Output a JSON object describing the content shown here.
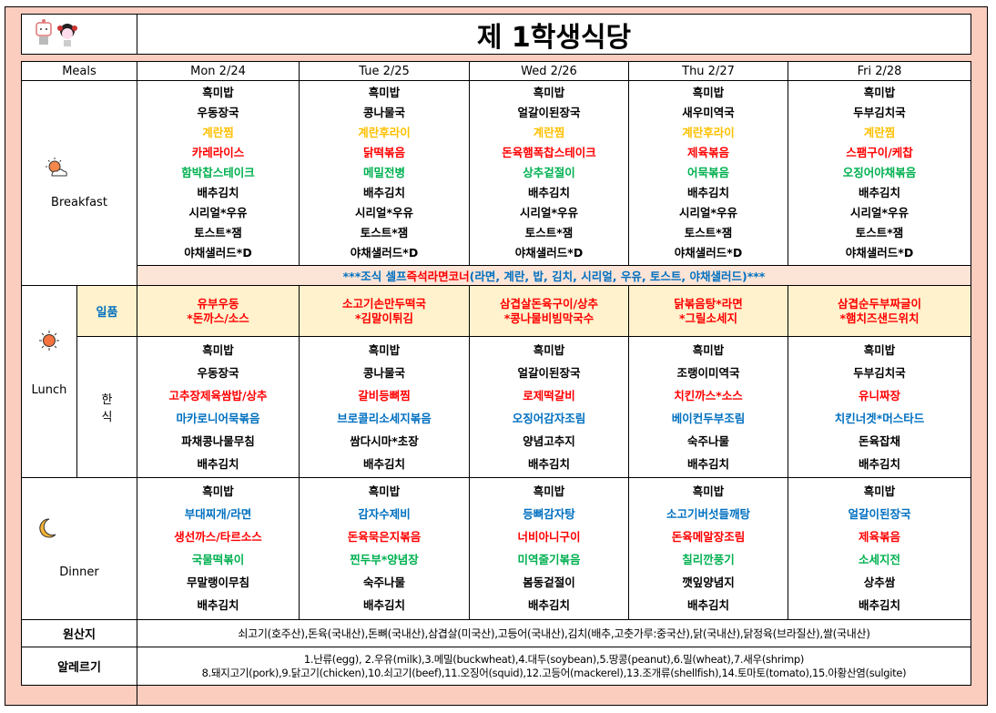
{
  "title": "제 1학생식당",
  "header": {
    "meals": "Meals",
    "days": [
      "Mon 2/24",
      "Tue 2/25",
      "Wed 2/26",
      "Thu 2/27",
      "Fri 2/28"
    ]
  },
  "labels": {
    "breakfast": "Breakfast",
    "lunch": "Lunch",
    "ilpum": "일품",
    "hansik_1": "한",
    "hansik_2": "식",
    "dinner": "Dinner",
    "origin": "원산지",
    "allergy": "알레르기"
  },
  "colors": {
    "k": "#000000",
    "y": "#FFC000",
    "r": "#FF0000",
    "g": "#00B050",
    "b": "#0070C0",
    "peach": "#FBCDBF",
    "ilpum_bg": "#FFF2CC",
    "banner_bg": "#FCE4D6"
  },
  "icons": {
    "logo": "mascot-characters",
    "breakfast": "sun-cloud-icon",
    "lunch": "sun-icon",
    "dinner": "crescent-moon-icon"
  },
  "breakfast_colors": [
    "k",
    "k",
    "y",
    "r",
    "g",
    "k",
    "k",
    "k",
    "k"
  ],
  "hansik_colors": [
    "k",
    "k",
    "r",
    "b",
    "k",
    "k"
  ],
  "dinner_colors": [
    "k",
    "b",
    "r",
    "g",
    "k",
    "k"
  ],
  "breakfast": [
    [
      "흑미밥",
      "우동장국",
      "계란찜",
      "카레라이스",
      "함박찹스테이크",
      "배추김치",
      "시리얼*우유",
      "토스트*잼",
      "야채샐러드*D"
    ],
    [
      "흑미밥",
      "콩나물국",
      "계란후라이",
      "닭떡볶음",
      "메밀전병",
      "배추김치",
      "시리얼*우유",
      "토스트*잼",
      "야채샐러드*D"
    ],
    [
      "흑미밥",
      "얼갈이된장국",
      "계란찜",
      "돈육햄폭찹스테이크",
      "상추겉절이",
      "배추김치",
      "시리얼*우유",
      "토스트*잼",
      "야채샐러드*D"
    ],
    [
      "흑미밥",
      "새우미역국",
      "계란후라이",
      "제육볶음",
      "어묵볶음",
      "배추김치",
      "시리얼*우유",
      "토스트*잼",
      "야채샐러드*D"
    ],
    [
      "흑미밥",
      "두부김치국",
      "계란찜",
      "스팸구이/케찹",
      "오징어야채볶음",
      "배추김치",
      "시리얼*우유",
      "토스트*잼",
      "야채샐러드*D"
    ]
  ],
  "banner": {
    "part1": "***조식 셀프 ",
    "part2": "즉석라면코너",
    "part3": "(라면, 계란, 밥, 김치, 시리얼, 우유, 토스트, 야채샐러드)***"
  },
  "lunch_special": [
    [
      "유부우동",
      "*돈까스/소스"
    ],
    [
      "소고기손만두떡국",
      "*김말이튀김"
    ],
    [
      "삼겹살돈육구이/상추",
      "*콩나물비빔막국수"
    ],
    [
      "닭볶음탕*라면",
      "*그릴소세지"
    ],
    [
      "삼겹순두부짜글이",
      "*햄치즈샌드위치"
    ]
  ],
  "lunch_hansik": [
    [
      "흑미밥",
      "우동장국",
      "고추장제육쌈밥/상추",
      "마카로니어묵볶음",
      "파채콩나물무침",
      "배추김치"
    ],
    [
      "흑미밥",
      "콩나물국",
      "갈비등뼈찜",
      "브로콜리소세지볶음",
      "쌈다시마*초장",
      "배추김치"
    ],
    [
      "흑미밥",
      "얼갈이된장국",
      "로제떡갈비",
      "오징어감자조림",
      "양념고추지",
      "배추김치"
    ],
    [
      "흑미밥",
      "조랭이미역국",
      "치킨까스*소스",
      "베이컨두부조림",
      "숙주나물",
      "배추김치"
    ],
    [
      "흑미밥",
      "두부김치국",
      "유니짜장",
      "치킨너겟*머스타드",
      "돈육잡채",
      "배추김치"
    ]
  ],
  "dinner": [
    [
      "흑미밥",
      "부대찌개/라면",
      "생선까스/타르소스",
      "국물떡볶이",
      "무말랭이무침",
      "배추김치"
    ],
    [
      "흑미밥",
      "감자수제비",
      "돈육묵은지볶음",
      "찐두부*양념장",
      "숙주나물",
      "배추김치"
    ],
    [
      "흑미밥",
      "등뼈감자탕",
      "너비아니구이",
      "미역줄기볶음",
      "봄동겉절이",
      "배추김치"
    ],
    [
      "흑미밥",
      "소고기버섯들깨탕",
      "돈육메알장조림",
      "칠리깐풍기",
      "깻잎양념지",
      "배추김치"
    ],
    [
      "흑미밥",
      "얼갈이된장국",
      "제육볶음",
      "소세지전",
      "상추쌈",
      "배추김치"
    ]
  ],
  "origin": "쇠고기(호주산),돈육(국내산),돈뼈(국내산),삼겹살(미국산),고등어(국내산),김치(배추,고춧가루:중국산),닭(국내산),닭정육(브라질산),쌀(국내산)",
  "allergy": {
    "line1": "1.난류(egg), 2.우유(milk),3.메밀(buckwheat),4.대두(soybean),5.땅콩(peanut),6.밀(wheat),7.새우(shrimp)",
    "line2": "8.돼지고기(pork),9.닭고기(chicken),10.쇠고기(beef),11.오징어(squid),12.고등어(mackerel),13.조개류(shellfish),14.토마토(tomato),15.아황산염(sulgite)"
  }
}
